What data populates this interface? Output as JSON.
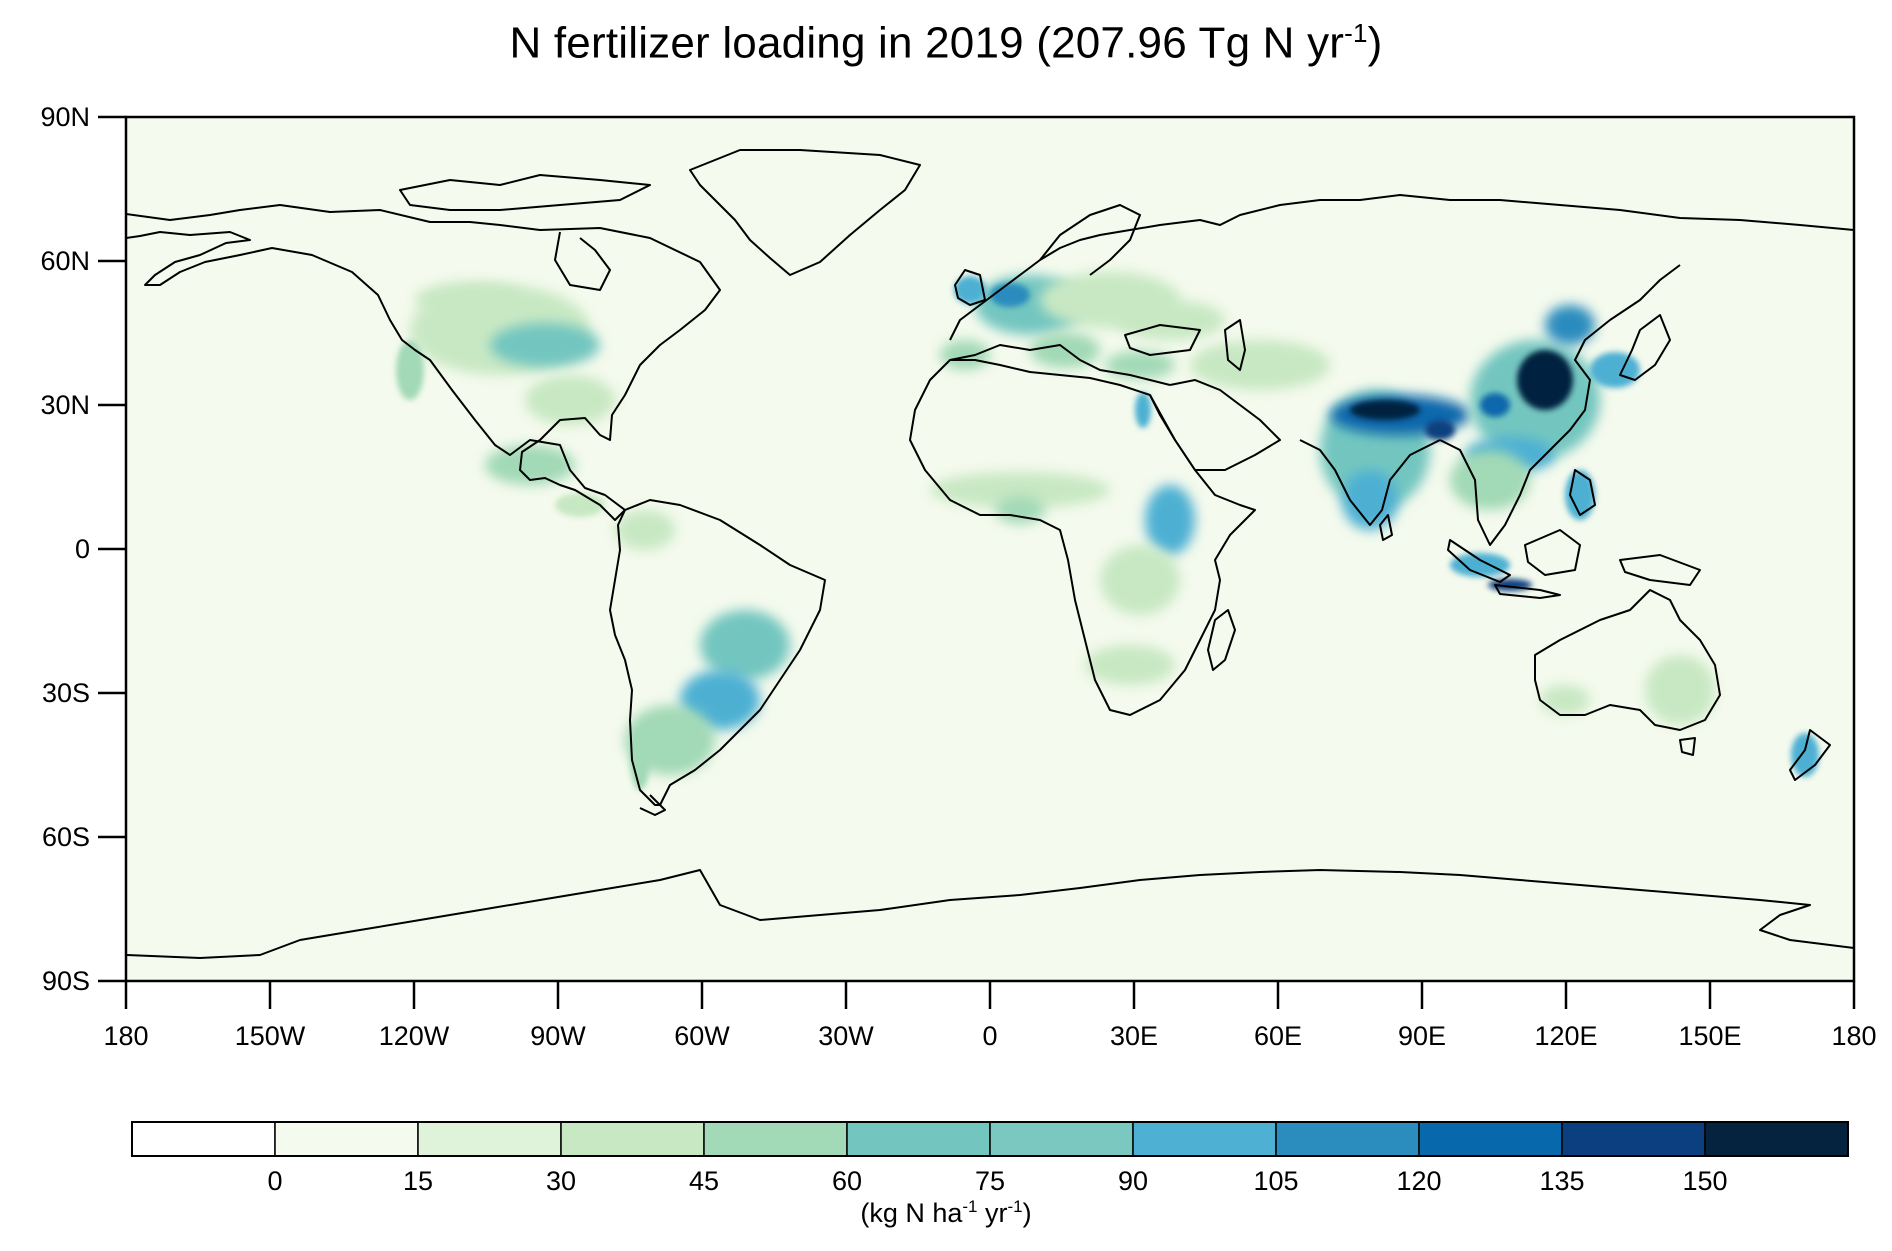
{
  "title": {
    "main": "N fertilizer loading in 2019 (207.96 Tg N yr",
    "sup": "-1",
    "end": ")"
  },
  "map": {
    "projection": "equirectangular",
    "lon_range": [
      -180,
      180
    ],
    "lat_range": [
      -90,
      90
    ],
    "ocean_color": "#f4faed",
    "coastline_color": "#000000",
    "lat_ticks": [
      {
        "value": 90,
        "label": "90N"
      },
      {
        "value": 60,
        "label": "60N"
      },
      {
        "value": 30,
        "label": "30N"
      },
      {
        "value": 0,
        "label": "0"
      },
      {
        "value": -30,
        "label": "30S"
      },
      {
        "value": -60,
        "label": "60S"
      },
      {
        "value": -90,
        "label": "90S"
      }
    ],
    "lon_ticks": [
      {
        "value": -180,
        "label": "180"
      },
      {
        "value": -150,
        "label": "150W"
      },
      {
        "value": -120,
        "label": "120W"
      },
      {
        "value": -90,
        "label": "90W"
      },
      {
        "value": -60,
        "label": "60W"
      },
      {
        "value": -30,
        "label": "30W"
      },
      {
        "value": 0,
        "label": "0"
      },
      {
        "value": 30,
        "label": "30E"
      },
      {
        "value": 60,
        "label": "60E"
      },
      {
        "value": 90,
        "label": "90E"
      },
      {
        "value": 120,
        "label": "120E"
      },
      {
        "value": 150,
        "label": "150E"
      },
      {
        "value": 180,
        "label": "180"
      }
    ]
  },
  "colorbar": {
    "colors": [
      "#ffffff",
      "#f4faed",
      "#dff2da",
      "#c8e8c3",
      "#a2d9b6",
      "#73c6c0",
      "#7bc8c1",
      "#4eb0d3",
      "#2b8cbe",
      "#0868ac",
      "#0c3f7f",
      "#05233f"
    ],
    "labels": [
      "0",
      "15",
      "30",
      "45",
      "60",
      "75",
      "90",
      "105",
      "120",
      "135",
      "150"
    ],
    "unit_main": "(kg N ha",
    "unit_sup1": "-1",
    "unit_mid": " yr",
    "unit_sup2": "-1",
    "unit_end": ")"
  }
}
